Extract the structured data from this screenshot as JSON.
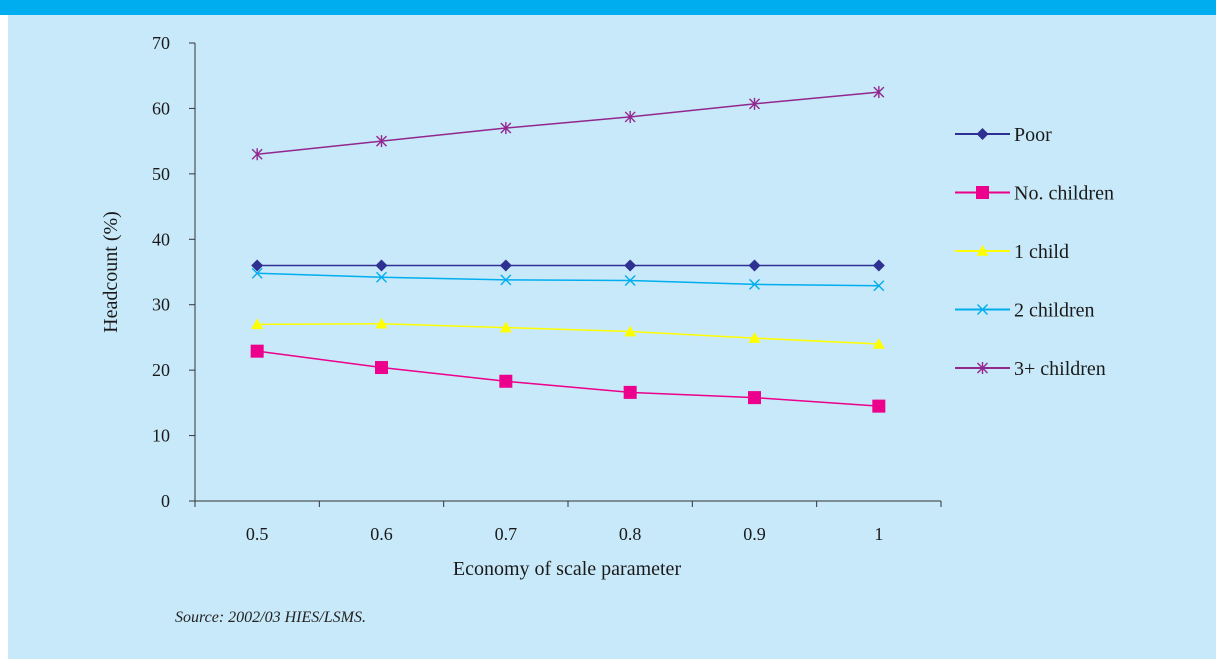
{
  "colors": {
    "top_bar": "#00aeef",
    "panel_background": "#c8e9f9",
    "axis": "#333333"
  },
  "source": "Source: 2002/03 HIES/LSMS.",
  "chart_data": {
    "type": "line",
    "title": "",
    "xlabel": "Economy of scale parameter",
    "ylabel": "Headcount (%)",
    "categories": [
      "0.5",
      "0.6",
      "0.7",
      "0.8",
      "0.9",
      "1"
    ],
    "ylim": [
      0,
      70
    ],
    "yticks": [
      "0",
      "10",
      "20",
      "30",
      "40",
      "50",
      "60",
      "70"
    ],
    "grid": false,
    "legend_position": "right",
    "series": [
      {
        "name": "Poor",
        "values": [
          36.0,
          36.0,
          36.0,
          36.0,
          36.0,
          36.0
        ],
        "color": "#2e3192",
        "marker": "diamond"
      },
      {
        "name": "No. children",
        "values": [
          22.9,
          20.4,
          18.3,
          16.6,
          15.8,
          14.5
        ],
        "color": "#ec008c",
        "marker": "square"
      },
      {
        "name": "1 child",
        "values": [
          27.0,
          27.1,
          26.5,
          25.9,
          24.9,
          24.0
        ],
        "color": "#ffff00",
        "marker": "triangle"
      },
      {
        "name": "2 children",
        "values": [
          34.8,
          34.2,
          33.8,
          33.7,
          33.1,
          32.9
        ],
        "color": "#00aeef",
        "marker": "x"
      },
      {
        "name": "3+ children",
        "values": [
          53.0,
          55.0,
          57.0,
          58.7,
          60.7,
          62.5
        ],
        "color": "#92278f",
        "marker": "asterisk"
      }
    ]
  }
}
